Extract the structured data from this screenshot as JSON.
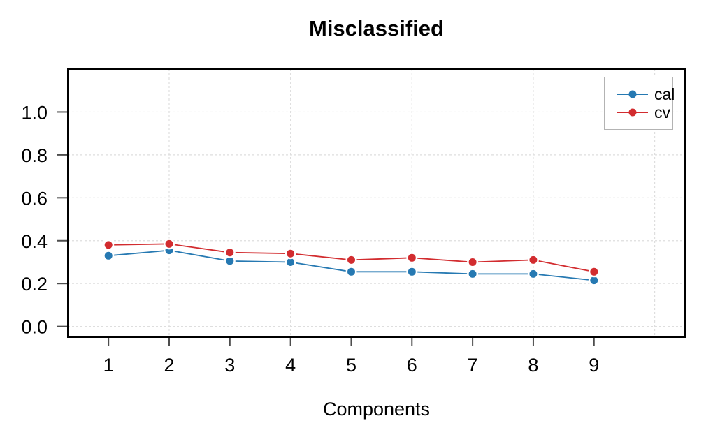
{
  "chart_data": {
    "type": "line",
    "title": "Misclassified",
    "xlabel": "Components",
    "ylabel": "",
    "x": [
      1,
      2,
      3,
      4,
      5,
      6,
      7,
      8,
      9
    ],
    "series": [
      {
        "name": "cal",
        "color": "#2679B2",
        "values": [
          0.33,
          0.355,
          0.305,
          0.3,
          0.255,
          0.255,
          0.245,
          0.245,
          0.215
        ]
      },
      {
        "name": "cv",
        "color": "#D22C2F",
        "values": [
          0.38,
          0.385,
          0.345,
          0.34,
          0.31,
          0.32,
          0.3,
          0.31,
          0.255
        ]
      }
    ],
    "xticks": [
      1,
      2,
      3,
      4,
      5,
      6,
      7,
      8,
      9
    ],
    "xtick_labels": [
      "1",
      "2",
      "3",
      "4",
      "5",
      "6",
      "7",
      "8",
      "9"
    ],
    "yticks": [
      0.0,
      0.2,
      0.4,
      0.6,
      0.8,
      1.0
    ],
    "ytick_labels": [
      "0.0",
      "0.2",
      "0.4",
      "0.6",
      "0.8",
      "1.0"
    ],
    "xlim": [
      0.33,
      10.5
    ],
    "ylim": [
      -0.05,
      1.2
    ],
    "grid": {
      "on": true,
      "style": "dashed",
      "color": "#dedede",
      "horizontal_at": [
        0.0,
        0.2,
        0.4,
        0.6,
        0.8,
        1.0
      ],
      "vertical_at": [
        2,
        4,
        6,
        8,
        10
      ]
    },
    "legend": {
      "position": "topright",
      "entries": [
        "cal",
        "cv"
      ]
    },
    "axis_color": "#000000",
    "tick_color": "#4d4d4d",
    "background": "#ffffff"
  }
}
